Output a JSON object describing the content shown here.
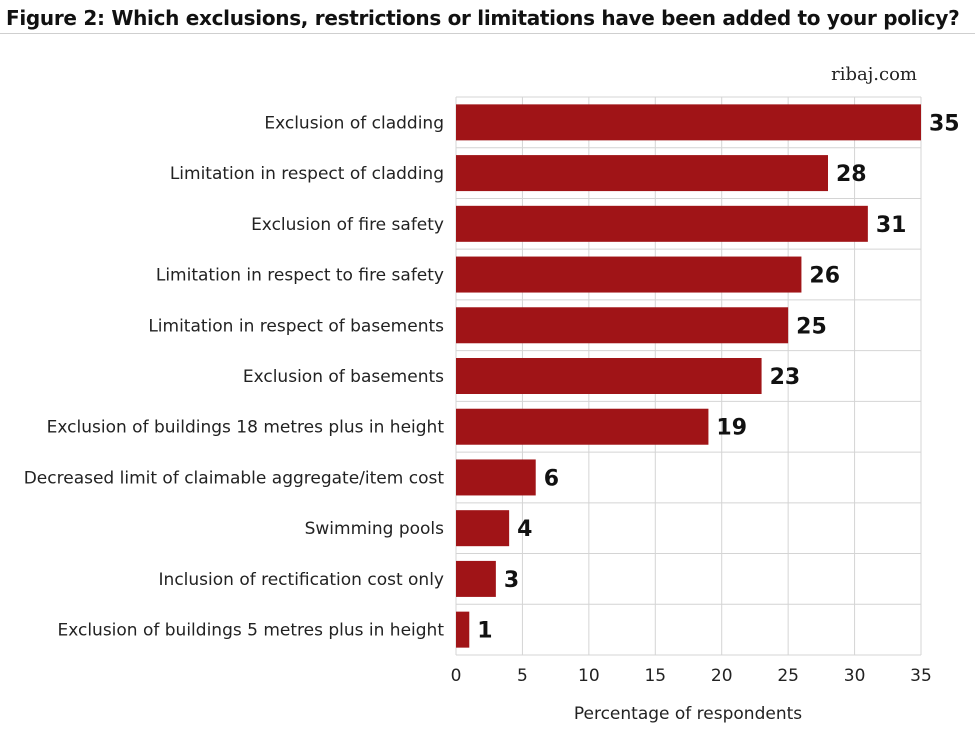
{
  "header": {
    "title": "Figure 2: Which exclusions, restrictions or limitations have been added to your policy?",
    "source": "ribaj.com"
  },
  "colors": {
    "bar": "#a01417",
    "grid": "#d4d4d4"
  },
  "chart_data": {
    "type": "bar",
    "orientation": "horizontal",
    "categories": [
      "Exclusion of cladding",
      "Limitation in respect of cladding",
      "Exclusion of fire safety",
      "Limitation in respect to fire safety",
      "Limitation in respect of basements",
      "Exclusion of basements",
      "Exclusion of buildings 18 metres plus in height",
      "Decreased limit of claimable aggregate/item cost",
      "Swimming pools",
      "Inclusion of rectification cost only",
      "Exclusion of buildings 5 metres plus in height"
    ],
    "values": [
      35,
      28,
      31,
      26,
      25,
      23,
      19,
      6,
      4,
      3,
      1
    ],
    "xlabel": "Percentage of respondents",
    "ylabel": "",
    "xlim": [
      0,
      35
    ],
    "xticks": [
      0,
      5,
      10,
      15,
      20,
      25,
      30,
      35
    ],
    "grid": "vertical",
    "legend": "none",
    "data_labels": true
  }
}
